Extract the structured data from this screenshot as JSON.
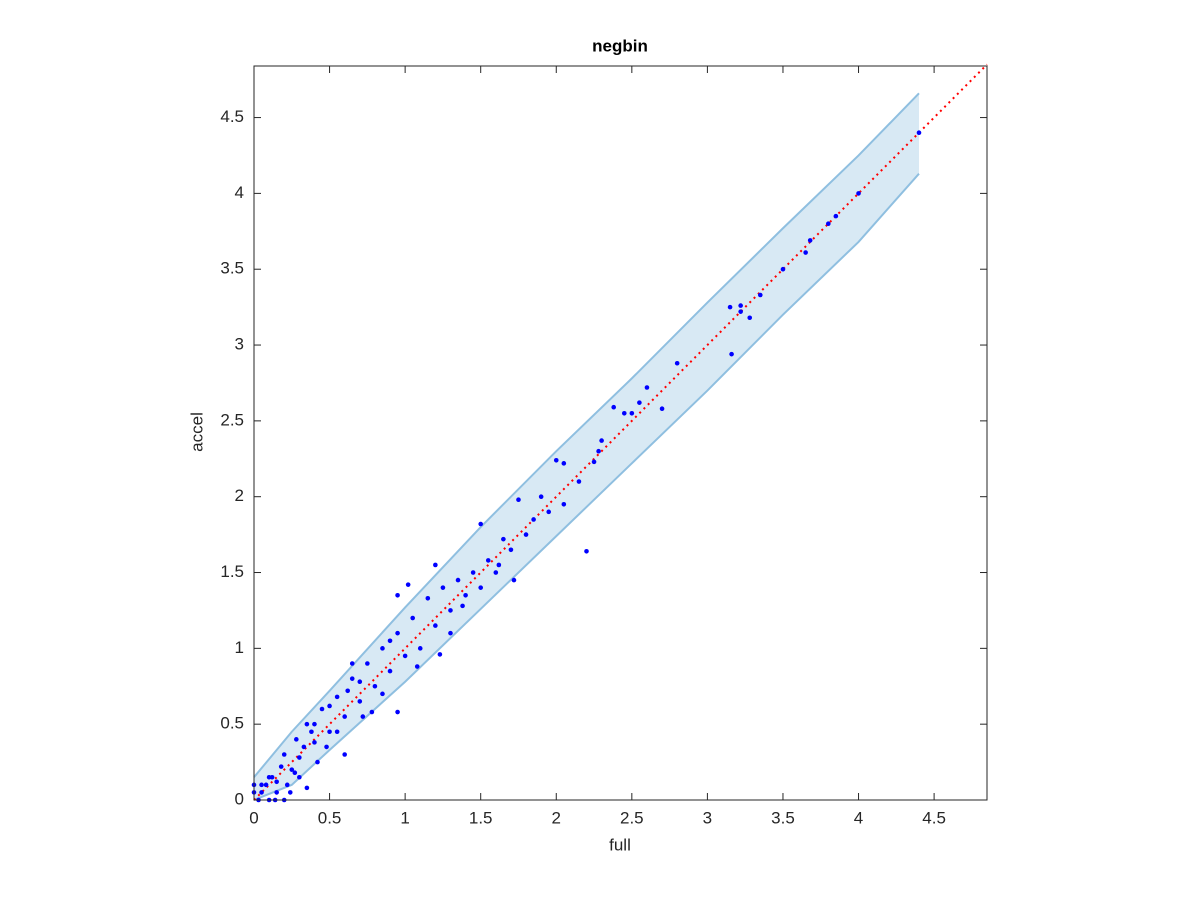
{
  "chart_data": {
    "type": "scatter",
    "title": "negbin",
    "x_label": "full",
    "y_label": "accel",
    "xlim": [
      0,
      4.85
    ],
    "ylim": [
      0,
      4.84
    ],
    "xticks": [
      0,
      0.5,
      1,
      1.5,
      2,
      2.5,
      3,
      3.5,
      4,
      4.5
    ],
    "yticks": [
      0,
      0.5,
      1,
      1.5,
      2,
      2.5,
      3,
      3.5,
      4,
      4.5
    ],
    "band": {
      "color": "#8fbfe0",
      "x": [
        0,
        0.25,
        0.5,
        1,
        1.5,
        2,
        2.5,
        3,
        3.5,
        4,
        4.4
      ],
      "upper": [
        0.15,
        0.45,
        0.72,
        1.27,
        1.8,
        2.3,
        2.78,
        3.28,
        3.77,
        4.25,
        4.66
      ],
      "lower": [
        0,
        0.1,
        0.33,
        0.78,
        1.26,
        1.74,
        2.22,
        2.7,
        3.2,
        3.68,
        4.13
      ]
    },
    "reference_line": {
      "color": "#ff0000",
      "x": [
        0,
        4.85
      ],
      "y": [
        0,
        4.85
      ]
    },
    "series": [
      {
        "color": "#0000ff",
        "x": [
          2.2,
          0.95,
          3.16,
          4.4,
          4.0,
          3.85,
          3.8,
          3.68,
          3.65,
          3.5,
          3.35,
          3.15,
          3.22,
          3.28,
          3.22,
          2.8,
          2.7,
          2.6,
          2.55,
          2.5,
          2.45,
          2.38,
          2.3,
          2.28,
          2.25,
          2.15,
          2.05,
          2.0,
          1.9,
          1.85,
          1.75,
          1.8,
          1.7,
          1.65,
          1.5,
          1.6,
          1.55,
          1.45,
          1.4,
          1.35,
          1.3,
          1.25,
          1.2,
          1.15,
          1.1,
          1.05,
          1.0,
          0.95,
          0.9,
          0.85,
          0.8,
          0.75,
          0.7,
          0.65,
          0.6,
          0.55,
          0.5,
          0.45,
          0.4,
          0.35,
          0.3,
          0.28,
          0.25,
          0.2,
          0.15,
          0.1,
          0.05,
          0.03,
          0.1,
          0.2,
          0.15,
          0.22,
          0.3,
          0.35,
          0.12,
          0.05,
          0.4,
          1.23,
          1.5,
          1.95,
          2.05,
          0.6,
          0.95,
          1.2,
          0.78,
          1.02,
          0.65,
          0.5,
          0.42,
          0.33,
          0.27,
          0.18,
          0.08,
          0.0,
          0.0,
          0.14,
          0.24,
          0.55,
          0.7,
          0.85,
          0.9,
          1.08,
          1.3,
          1.38,
          1.62,
          1.72,
          0.62,
          0.72,
          0.48,
          0.38
        ],
        "y": [
          1.64,
          0.58,
          2.94,
          4.4,
          4.0,
          3.85,
          3.8,
          3.69,
          3.61,
          3.5,
          3.33,
          3.25,
          3.26,
          3.18,
          3.22,
          2.88,
          2.58,
          2.72,
          2.62,
          2.55,
          2.55,
          2.59,
          2.37,
          2.3,
          2.23,
          2.1,
          2.22,
          2.24,
          2.0,
          1.85,
          1.98,
          1.75,
          1.65,
          1.72,
          1.82,
          1.5,
          1.58,
          1.5,
          1.35,
          1.45,
          1.25,
          1.4,
          1.15,
          1.33,
          1.0,
          1.2,
          0.95,
          1.1,
          0.85,
          1.0,
          0.75,
          0.9,
          0.65,
          0.8,
          0.55,
          0.68,
          0.45,
          0.6,
          0.38,
          0.5,
          0.28,
          0.4,
          0.2,
          0.3,
          0.12,
          0.15,
          0.05,
          0.0,
          0.0,
          0.0,
          0.05,
          0.1,
          0.15,
          0.08,
          0.15,
          0.1,
          0.5,
          0.96,
          1.4,
          1.9,
          1.95,
          0.3,
          1.35,
          1.55,
          0.58,
          1.42,
          0.9,
          0.62,
          0.25,
          0.35,
          0.18,
          0.22,
          0.1,
          0.05,
          0.1,
          0.0,
          0.05,
          0.45,
          0.78,
          0.7,
          1.05,
          0.88,
          1.1,
          1.28,
          1.55,
          1.45,
          0.72,
          0.55,
          0.35,
          0.45
        ]
      }
    ]
  }
}
